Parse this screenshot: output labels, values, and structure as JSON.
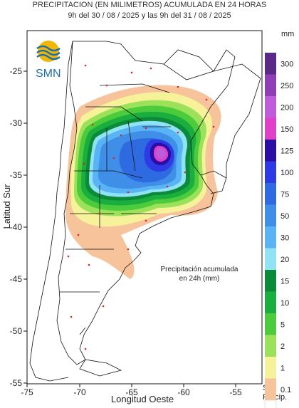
{
  "header": {
    "title": "PRECIPITACION (EN MILIMETROS) ACUMULADA EN 24 HORAS",
    "subtitle": "9h del 30 / 08 / 2025  y las 9h del 31 / 08 / 2025"
  },
  "logo": {
    "text": "SMN"
  },
  "axes": {
    "xlabel": "Longitud Oeste",
    "ylabel": "Latitud Sur",
    "x_ticks": [
      "-75",
      "-70",
      "-65",
      "-60",
      "-55"
    ],
    "y_ticks": [
      "-25",
      "-30",
      "-35",
      "-40",
      "-45",
      "-50",
      "-55"
    ]
  },
  "annotation": {
    "line1": "Precipitación acumulada",
    "line2": "en 24h (mm)"
  },
  "legend": {
    "unit": "mm",
    "no_precip_line1": "Sin",
    "no_precip_line2": "Precip.",
    "levels": [
      {
        "label": "300",
        "color": "#5b2a86"
      },
      {
        "label": "250",
        "color": "#8e3fb5"
      },
      {
        "label": "200",
        "color": "#c05bd9"
      },
      {
        "label": "150",
        "color": "#e040c8"
      },
      {
        "label": "125",
        "color": "#2a0ea5"
      },
      {
        "label": "100",
        "color": "#2d3ae6"
      },
      {
        "label": "75",
        "color": "#2f6be0"
      },
      {
        "label": "50",
        "color": "#3f8fe8"
      },
      {
        "label": "30",
        "color": "#58b4f4"
      },
      {
        "label": "20",
        "color": "#8fe3f5"
      },
      {
        "label": "15",
        "color": "#0b8a3a"
      },
      {
        "label": "10",
        "color": "#19ae3d"
      },
      {
        "label": "5",
        "color": "#4ccb3c"
      },
      {
        "label": "2",
        "color": "#9be25a"
      },
      {
        "label": "1",
        "color": "#f5f29a"
      },
      {
        "label": "0.1",
        "color": "#f7c39a"
      }
    ]
  },
  "colors": {
    "sea": "#ffffff",
    "land": "#ffffff",
    "border": "#111111",
    "station": "#e0202a",
    "no_precip": "#ffffff"
  }
}
